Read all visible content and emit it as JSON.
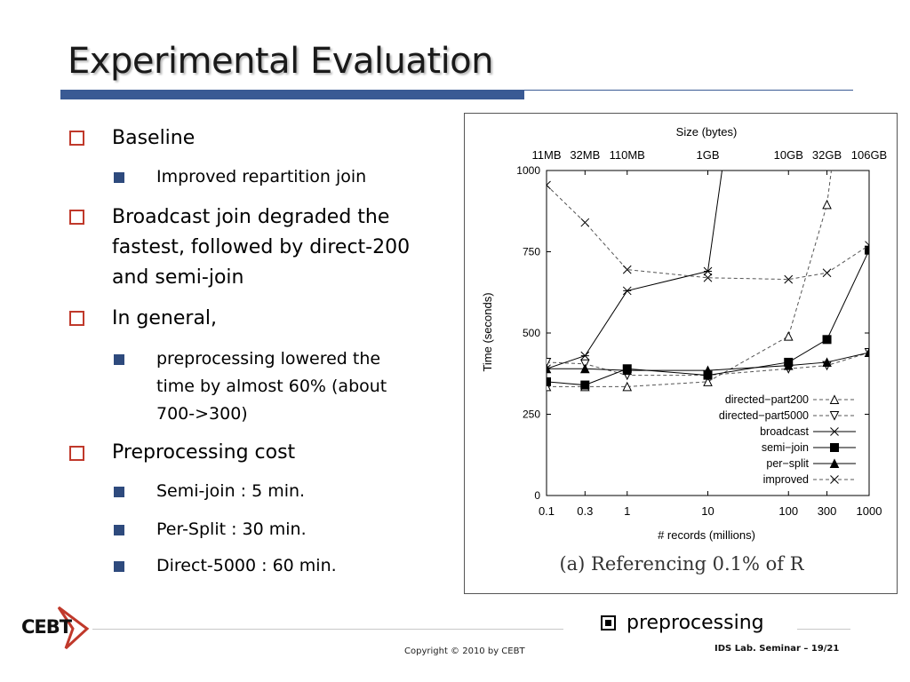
{
  "slide": {
    "title": "Experimental Evaluation",
    "bullets": [
      {
        "text": "Baseline",
        "sub": [
          "Improved repartition join"
        ]
      },
      {
        "text": "Broadcast join degraded the fastest, followed by direct-200 and semi-join",
        "sub": []
      },
      {
        "text": "In general,",
        "sub": [
          "preprocessing lowered the time by almost 60% (about 700->300)"
        ]
      },
      {
        "text": "Preprocessing cost",
        "sub": [
          "Semi-join : 5 min.",
          "Per-Split : 30 min.",
          "Direct-5000 : 60 min."
        ]
      }
    ],
    "preprocessing_label": "preprocessing",
    "copyright": "Copyright © 2010 by CEBT",
    "footer_right": "IDS Lab. Seminar – 19/21",
    "logo_text": "CEBT",
    "colors": {
      "title_bar": "#3a5a94",
      "box_bullet": "#c0392b",
      "sub_bullet": "#2e4a7d"
    }
  },
  "chart_data": {
    "type": "line",
    "xscale": "log",
    "x": [
      0.1,
      0.3,
      1,
      10,
      100,
      300,
      1000
    ],
    "xtick_labels": [
      "0.1",
      "0.3",
      "1",
      "10",
      "100",
      "300",
      "1000"
    ],
    "xlabel": "# records (millions)",
    "ylabel": "Time (seconds)",
    "ylim": [
      0,
      1000
    ],
    "yticks": [
      0,
      250,
      500,
      750,
      1000
    ],
    "top_axis_title": "Size (bytes)",
    "top_ticks": [
      {
        "x": 0.1,
        "label": "11MB"
      },
      {
        "x": 0.3,
        "label": "32MB"
      },
      {
        "x": 1,
        "label": "110MB"
      },
      {
        "x": 10,
        "label": "1GB"
      },
      {
        "x": 100,
        "label": "10GB"
      },
      {
        "x": 300,
        "label": "32GB"
      },
      {
        "x": 1000,
        "label": "106GB"
      }
    ],
    "caption": "(a) Referencing 0.1% of R",
    "legend_position": "bottom-right",
    "grid": false,
    "series": [
      {
        "name": "directed−part200",
        "marker": "triangle-up-open",
        "dash": "dashed",
        "points": [
          [
            0.1,
            335
          ],
          [
            0.3,
            335
          ],
          [
            1,
            335
          ],
          [
            10,
            350
          ],
          [
            100,
            490
          ],
          [
            300,
            895
          ],
          [
            340,
            1000
          ]
        ]
      },
      {
        "name": "directed−part5000",
        "marker": "triangle-down-open",
        "dash": "dashed",
        "points": [
          [
            0.1,
            410
          ],
          [
            0.3,
            405
          ],
          [
            1,
            370
          ],
          [
            10,
            370
          ],
          [
            100,
            390
          ],
          [
            300,
            400
          ],
          [
            1000,
            440
          ]
        ]
      },
      {
        "name": "broadcast",
        "marker": "asterisk",
        "dash": "solid",
        "points": [
          [
            0.1,
            390
          ],
          [
            0.3,
            430
          ],
          [
            1,
            630
          ],
          [
            10,
            690
          ],
          [
            15,
            1000
          ]
        ]
      },
      {
        "name": "semi−join",
        "marker": "square-filled",
        "dash": "solid",
        "points": [
          [
            0.1,
            350
          ],
          [
            0.3,
            340
          ],
          [
            1,
            390
          ],
          [
            10,
            370
          ],
          [
            100,
            410
          ],
          [
            300,
            480
          ],
          [
            1000,
            755
          ]
        ]
      },
      {
        "name": "per−split",
        "marker": "triangle-up-filled",
        "dash": "solid",
        "points": [
          [
            0.1,
            390
          ],
          [
            0.3,
            390
          ],
          [
            1,
            385
          ],
          [
            10,
            385
          ],
          [
            100,
            400
          ],
          [
            300,
            410
          ],
          [
            1000,
            440
          ]
        ]
      },
      {
        "name": "improved",
        "marker": "x",
        "dash": "dashed",
        "points": [
          [
            0.1,
            955
          ],
          [
            0.3,
            840
          ],
          [
            1,
            695
          ],
          [
            10,
            670
          ],
          [
            100,
            665
          ],
          [
            300,
            685
          ],
          [
            1000,
            770
          ]
        ]
      }
    ]
  }
}
